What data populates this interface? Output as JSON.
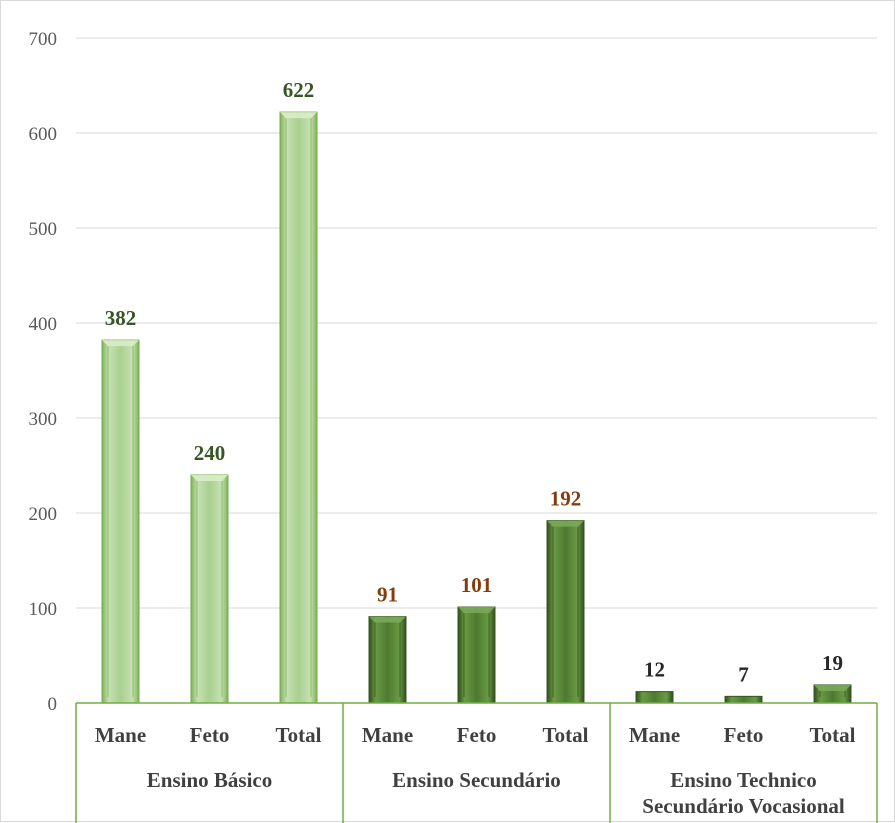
{
  "chart_data": {
    "type": "bar",
    "title": "",
    "xlabel": "",
    "ylabel": "",
    "ylim": [
      0,
      700
    ],
    "yticks": [
      0,
      100,
      200,
      300,
      400,
      500,
      600,
      700
    ],
    "grid": true,
    "legend": "none",
    "groups": [
      {
        "name": "Ensino Básico",
        "name_lines": [
          "Ensino Básico"
        ],
        "style": "light",
        "label_color": "#375623",
        "categories": [
          "Mane",
          "Feto",
          "Total"
        ],
        "values": [
          382,
          240,
          622
        ]
      },
      {
        "name": "Ensino Secundário",
        "name_lines": [
          "Ensino Secundário"
        ],
        "style": "dark",
        "label_color": "#843c0c",
        "categories": [
          "Mane",
          "Feto",
          "Total"
        ],
        "values": [
          91,
          101,
          192
        ]
      },
      {
        "name": "Ensino Technico Secundário Vocasional",
        "name_lines": [
          "Ensino Technico",
          "Secundário Vocasional"
        ],
        "style": "dark",
        "label_color": "#262626",
        "categories": [
          "Mane",
          "Feto",
          "Total"
        ],
        "values": [
          12,
          7,
          19
        ]
      }
    ],
    "colors": {
      "light_fill": "#a9d08e",
      "light_edge": "#70ad47",
      "dark_fill": "#548235",
      "dark_edge": "#375623",
      "grid": "#d9d9d9",
      "group_divider": "#70ad47"
    }
  }
}
